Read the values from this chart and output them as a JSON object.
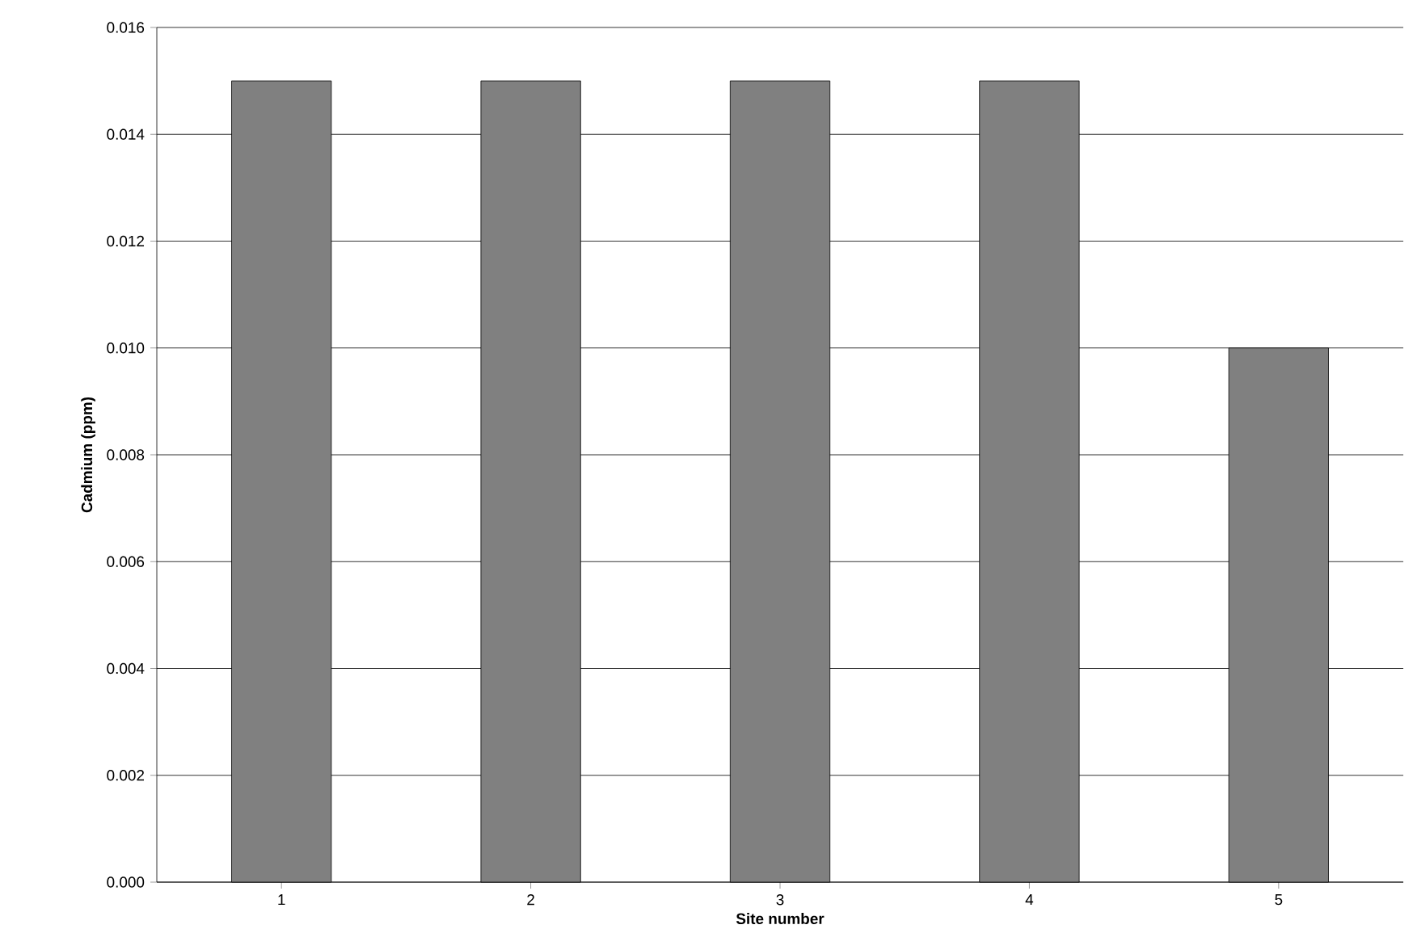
{
  "chart_data": {
    "type": "bar",
    "xlabel": "Site number",
    "ylabel": "Cadmium (ppm)",
    "categories": [
      "1",
      "2",
      "3",
      "4",
      "5"
    ],
    "values": [
      0.015,
      0.015,
      0.015,
      0.015,
      0.01
    ],
    "color": "#808080",
    "ylim": [
      0,
      0.016
    ],
    "yticks": [
      {
        "value": 0,
        "label": "0.000"
      },
      {
        "value": 0.002,
        "label": "0.002"
      },
      {
        "value": 0.004,
        "label": "0.004"
      },
      {
        "value": 0.006,
        "label": "0.006"
      },
      {
        "value": 0.008,
        "label": "0.008"
      },
      {
        "value": 0.01,
        "label": "0.010"
      },
      {
        "value": 0.012,
        "label": "0.012"
      },
      {
        "value": 0.014,
        "label": "0.014"
      },
      {
        "value": 0.016,
        "label": "0.016"
      }
    ],
    "grid": "y"
  }
}
